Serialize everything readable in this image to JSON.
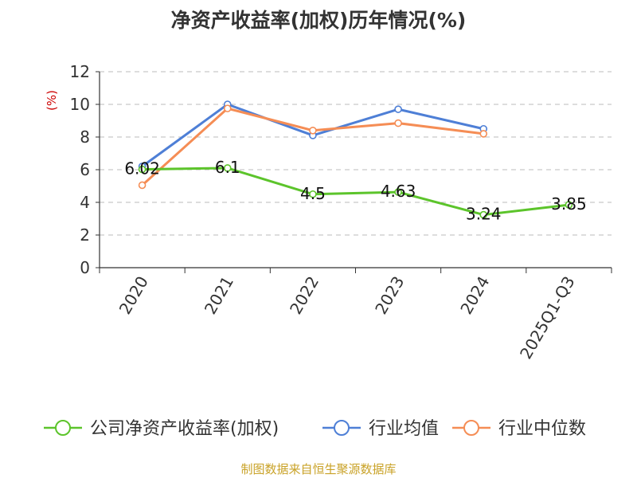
{
  "title": "净资产收益率(加权)历年情况(%)",
  "source": "制图数据来自恒生聚源数据库",
  "chart_data": {
    "type": "line",
    "title": "净资产收益率(加权)历年情况(%)",
    "ylabel": "(%)",
    "xlabel": "",
    "categories": [
      "2020",
      "2021",
      "2022",
      "2023",
      "2024",
      "2025Q1-Q3"
    ],
    "ylim": [
      0,
      12
    ],
    "yticks": [
      "0",
      "2",
      "4",
      "6",
      "8",
      "10",
      "12"
    ],
    "grid": true,
    "legend_position": "bottom",
    "series": [
      {
        "name": "公司净资产收益率(加权)",
        "color": "#5cc42b",
        "values": [
          6.02,
          6.1,
          4.5,
          4.63,
          3.24,
          3.85
        ],
        "labels": [
          "6.02",
          "6.1",
          "4.5",
          "4.63",
          "3.24",
          "3.85"
        ]
      },
      {
        "name": "行业均值",
        "color": "#4e7fd6",
        "values": [
          6.2,
          10.0,
          8.1,
          9.7,
          8.5,
          null
        ]
      },
      {
        "name": "行业中位数",
        "color": "#f58d55",
        "values": [
          5.05,
          9.75,
          8.4,
          8.85,
          8.2,
          null
        ]
      }
    ]
  }
}
